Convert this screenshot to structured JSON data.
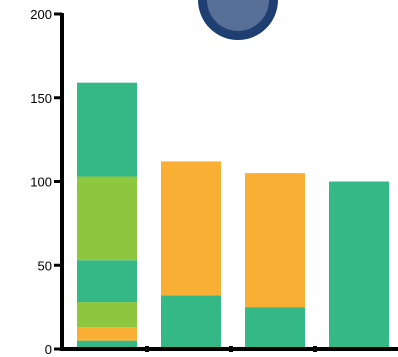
{
  "chart_data": {
    "type": "bar",
    "stacked": true,
    "categories": [
      "",
      "",
      "",
      ""
    ],
    "series": [
      {
        "values": [
          5,
          32,
          25,
          100
        ],
        "color": "#33b886"
      },
      {
        "values": [
          8,
          80,
          80,
          0
        ],
        "color": "#f9ae34"
      },
      {
        "values": [
          15,
          0,
          0,
          0
        ],
        "color": "#8dc63f"
      },
      {
        "values": [
          25,
          0,
          0,
          0
        ],
        "color": "#33b886"
      },
      {
        "values": [
          50,
          0,
          0,
          0
        ],
        "color": "#8dc63f"
      },
      {
        "values": [
          56,
          0,
          0,
          0
        ],
        "color": "#33b886"
      }
    ],
    "y_ticks": [
      0,
      50,
      100,
      150,
      200
    ],
    "ylim": [
      0,
      200
    ],
    "title": "",
    "xlabel": "",
    "ylabel": "",
    "grid": false,
    "legend": "none"
  },
  "colors": {
    "axis": "#000000",
    "badge": "#1f3f73"
  }
}
